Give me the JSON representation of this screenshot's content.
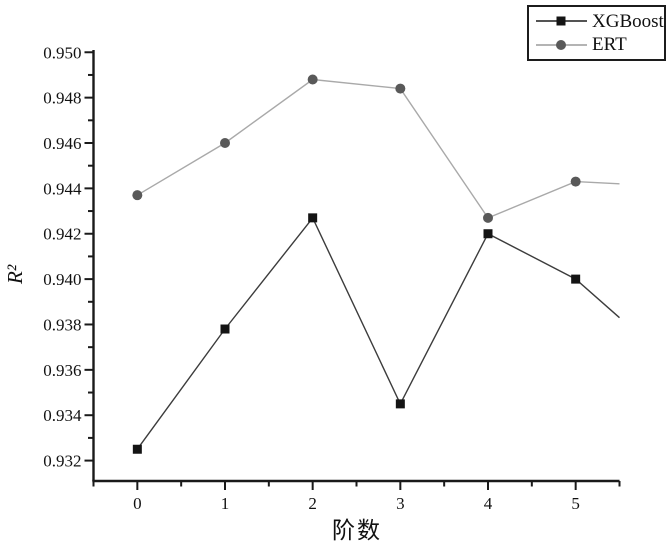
{
  "chart_data": {
    "type": "line",
    "title": "",
    "xlabel": "阶数",
    "ylabel": "R²",
    "x": [
      0,
      1,
      2,
      3,
      4,
      5
    ],
    "series": [
      {
        "name": "XGBoost",
        "marker": "square",
        "marker_color": "#141414",
        "line_color": "#3c3c3c",
        "values": [
          0.9325,
          0.9378,
          0.9427,
          0.9345,
          0.942,
          0.94
        ],
        "edge_extension": {
          "x": 5.5,
          "value": 0.9383
        }
      },
      {
        "name": "ERT",
        "marker": "circle",
        "marker_color": "#595959",
        "line_color": "#a9a9a9",
        "values": [
          0.9437,
          0.946,
          0.9488,
          0.9484,
          0.9427,
          0.9443
        ],
        "edge_extension": {
          "x": 5.5,
          "value": 0.9442
        }
      }
    ],
    "xlim": [
      -0.5,
      5.5
    ],
    "ylim": [
      0.9311,
      0.9501
    ],
    "x_major_ticks": [
      0,
      1,
      2,
      3,
      4,
      5
    ],
    "x_tick_labels": [
      "0",
      "1",
      "2",
      "3",
      "4",
      "5"
    ],
    "x_minor_step": 0.5,
    "y_major_ticks": [
      0.932,
      0.934,
      0.936,
      0.938,
      0.94,
      0.942,
      0.944,
      0.946,
      0.948,
      0.95
    ],
    "y_tick_labels": [
      "0.932",
      "0.934",
      "0.936",
      "0.938",
      "0.940",
      "0.942",
      "0.944",
      "0.946",
      "0.948",
      "0.950"
    ],
    "grid": false,
    "legend_position": "top-right",
    "axis_color": "#1a1a1a",
    "tick_label_color": "#111111",
    "background_color": "#ffffff"
  }
}
